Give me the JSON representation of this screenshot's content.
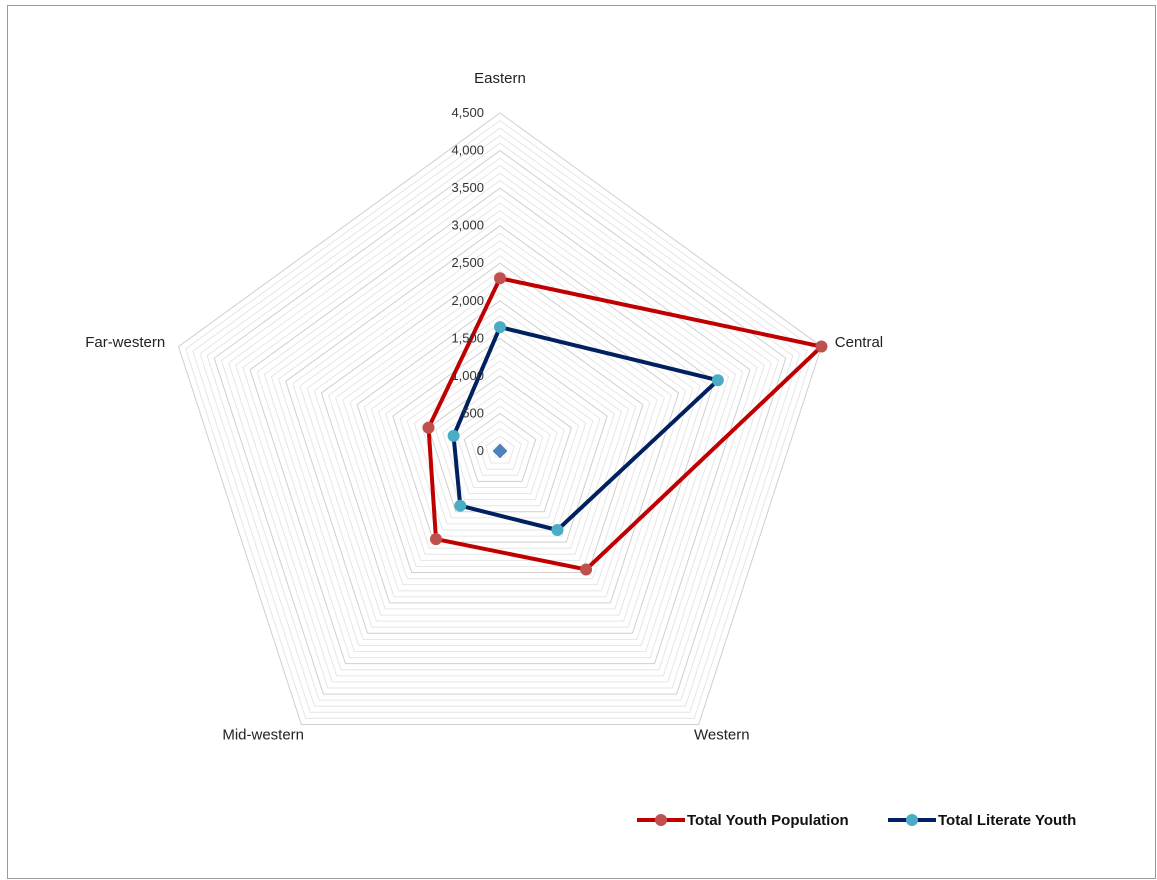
{
  "chart_data": {
    "type": "radar",
    "categories": [
      "Eastern",
      "Central",
      "Western",
      "Mid-western",
      "Far-western"
    ],
    "radial_ticks": [
      "0",
      "500",
      "1,000",
      "1,500",
      "2,000",
      "2,500",
      "3,000",
      "3,500",
      "4,000",
      "4,500"
    ],
    "rlim": [
      0,
      4500
    ],
    "grid": true,
    "legend_position": "bottom-right",
    "series": [
      {
        "name": "Total Youth Population",
        "values": [
          2300,
          4500,
          1950,
          1450,
          1000
        ],
        "color": "#c00000",
        "marker_color": "#c0504d"
      },
      {
        "name": "Total Literate Youth",
        "values": [
          1650,
          3050,
          1300,
          900,
          650
        ],
        "color": "#002060",
        "marker_color": "#4bacc6"
      }
    ],
    "center_marker_color": "#4f81bd"
  }
}
